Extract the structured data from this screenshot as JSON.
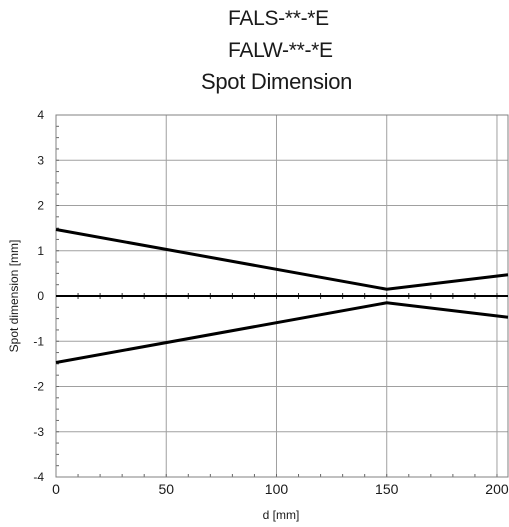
{
  "chart_data": {
    "type": "line",
    "title": [
      "FALS-**-*E",
      "FALW-**-*E",
      "Spot Dimension"
    ],
    "xlabel": "d [mm]",
    "ylabel": "Spot dimension [mm]",
    "xlim": [
      0,
      205
    ],
    "ylim": [
      -4,
      4
    ],
    "xticks": [
      0,
      50,
      100,
      150,
      200
    ],
    "xtick_labels": [
      "0",
      "50",
      "100",
      "150",
      "200"
    ],
    "yticks": [
      4,
      3,
      2,
      1,
      0,
      -1,
      -2,
      -3,
      -4
    ],
    "ytick_labels": [
      "4",
      "3",
      "2",
      "1",
      "0",
      "-1",
      "-2",
      "-3",
      "-4"
    ],
    "grid": true,
    "series": [
      {
        "x": [
          0,
          150,
          205
        ],
        "y": [
          1.47,
          0.15,
          0.47
        ]
      },
      {
        "x": [
          0,
          150,
          205
        ],
        "y": [
          -1.47,
          -0.15,
          -0.47
        ]
      },
      {
        "x": [
          0,
          205
        ],
        "y": [
          0,
          0
        ]
      }
    ],
    "colors": {
      "line": "#000000",
      "grid": "#a0a0a0",
      "frame": "#808080"
    }
  }
}
